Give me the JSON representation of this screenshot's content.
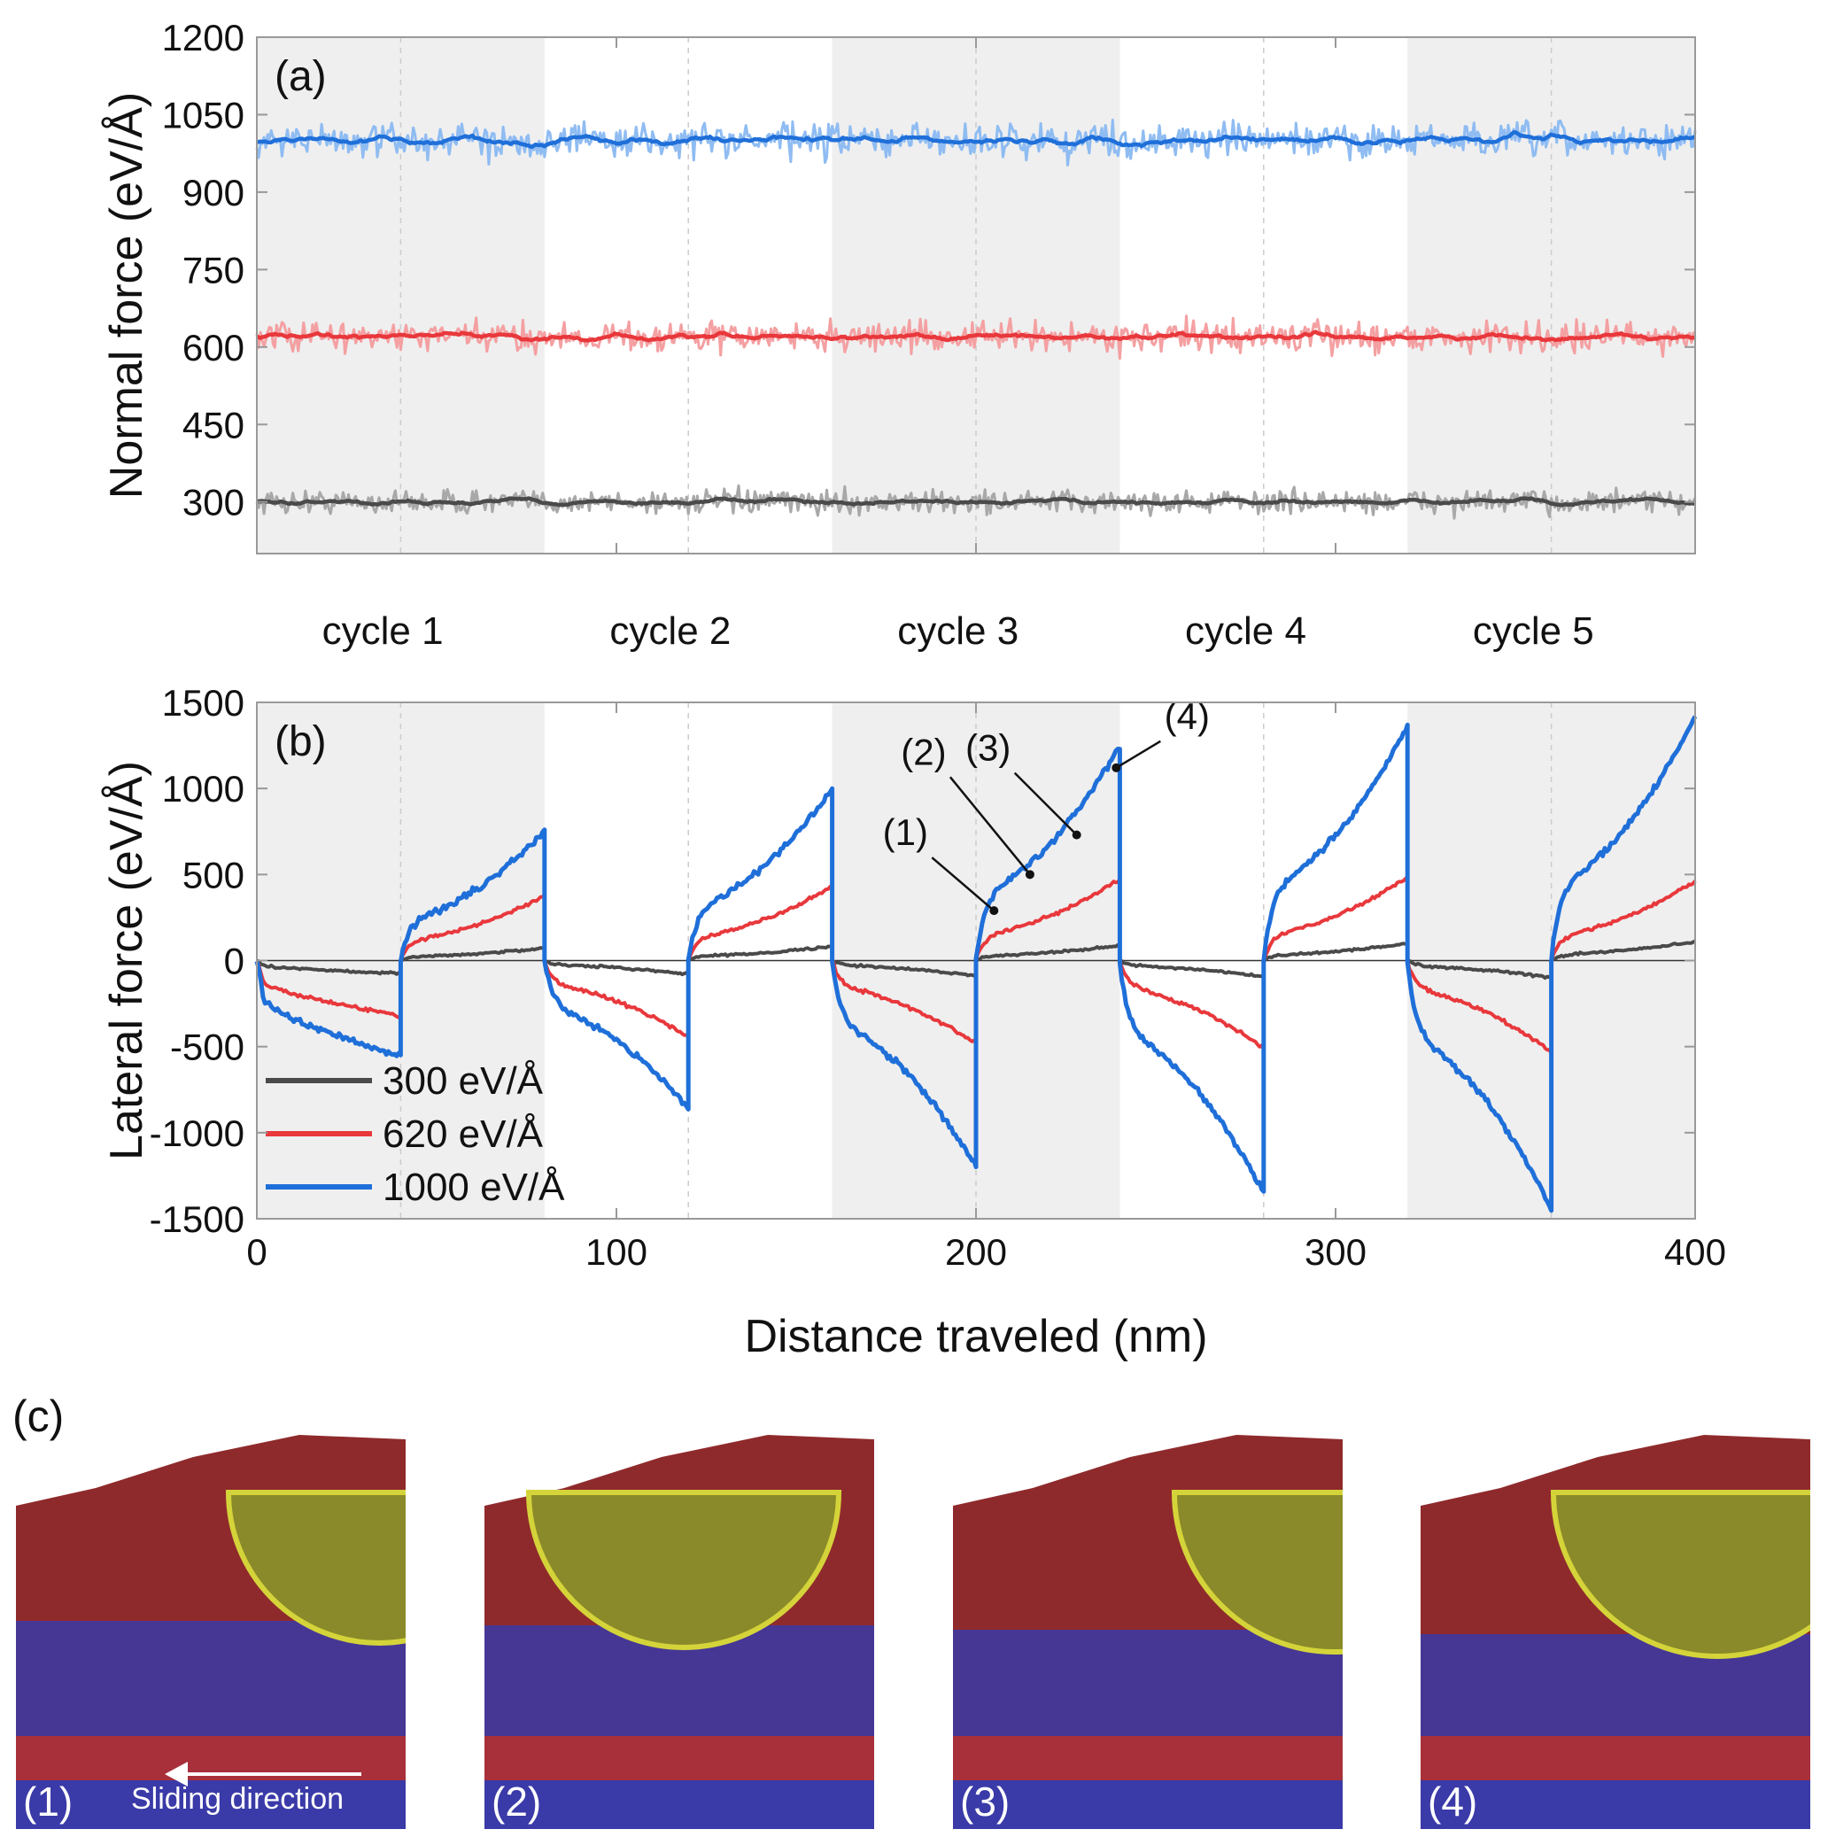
{
  "panel_c_label": "(c)",
  "snapshots": [
    {
      "label": "(1)",
      "overlay": "Sliding direction"
    },
    {
      "label": "(2)",
      "overlay": ""
    },
    {
      "label": "(3)",
      "overlay": ""
    },
    {
      "label": "(4)",
      "overlay": ""
    }
  ],
  "colors": {
    "black": "#4a4a4a",
    "black_light": "#a8a8a8",
    "red": "#e8383c",
    "red_light": "#f4a0a2",
    "blue": "#1f6fd9",
    "blue_light": "#8fbcf2",
    "shade": "#efefef",
    "frame": "#999999",
    "substrate_red": "#8f2a2c",
    "substrate_blue": "#3a3aa8",
    "tip": "#8a8a2a"
  },
  "chart_data": [
    {
      "type": "line",
      "panel_label": "(a)",
      "ylabel": "Normal force (eV/Å)",
      "xlabel": "",
      "xlim": [
        0,
        400
      ],
      "ylim": [
        200,
        1200
      ],
      "yticks": [
        300,
        450,
        600,
        750,
        900,
        1050,
        1200
      ],
      "series": [
        {
          "name": "300 eV/Å",
          "mean": 300,
          "noise": 22
        },
        {
          "name": "620 eV/Å",
          "mean": 620,
          "noise": 28
        },
        {
          "name": "1000 eV/Å",
          "mean": 1000,
          "noise": 32
        }
      ]
    },
    {
      "type": "line",
      "panel_label": "(b)",
      "ylabel": "Lateral force (eV/Å)",
      "xlabel": "Distance traveled (nm)",
      "xlim": [
        0,
        400
      ],
      "ylim": [
        -1500,
        1500
      ],
      "xticks": [
        0,
        100,
        200,
        300,
        400
      ],
      "yticks": [
        -1500,
        -1000,
        -500,
        0,
        500,
        1000,
        1500
      ],
      "cycle_labels": [
        "cycle 1",
        "cycle 2",
        "cycle 3",
        "cycle 4",
        "cycle 5"
      ],
      "shaded_ranges": [
        [
          0,
          80
        ],
        [
          160,
          240
        ],
        [
          320,
          400
        ]
      ],
      "dashed_x": [
        40,
        120,
        200,
        280,
        360
      ],
      "legend": [
        "300 eV/Å",
        "620 eV/Å",
        "1000 eV/Å"
      ],
      "annotations": [
        {
          "text": "(1)",
          "x": 205,
          "y": 290
        },
        {
          "text": "(2)",
          "x": 215,
          "y": 500
        },
        {
          "text": "(3)",
          "x": 228,
          "y": 730
        },
        {
          "text": "(4)",
          "x": 239,
          "y": 1120
        }
      ],
      "series": [
        {
          "name": "300 eV/Å",
          "half_segment_end_values": [
            -75,
            65,
            -70,
            75,
            -80,
            80,
            -85,
            90,
            -90,
            100
          ]
        },
        {
          "name": "620 eV/Å",
          "half_segment_end_values": [
            -320,
            340,
            -400,
            390,
            -440,
            430,
            -460,
            440,
            -480,
            420
          ]
        },
        {
          "name": "1000 eV/Å",
          "half_segment_end_values": [
            -560,
            680,
            -780,
            900,
            -1080,
            1130,
            -1220,
            1230,
            -1300,
            1280
          ]
        }
      ]
    }
  ]
}
